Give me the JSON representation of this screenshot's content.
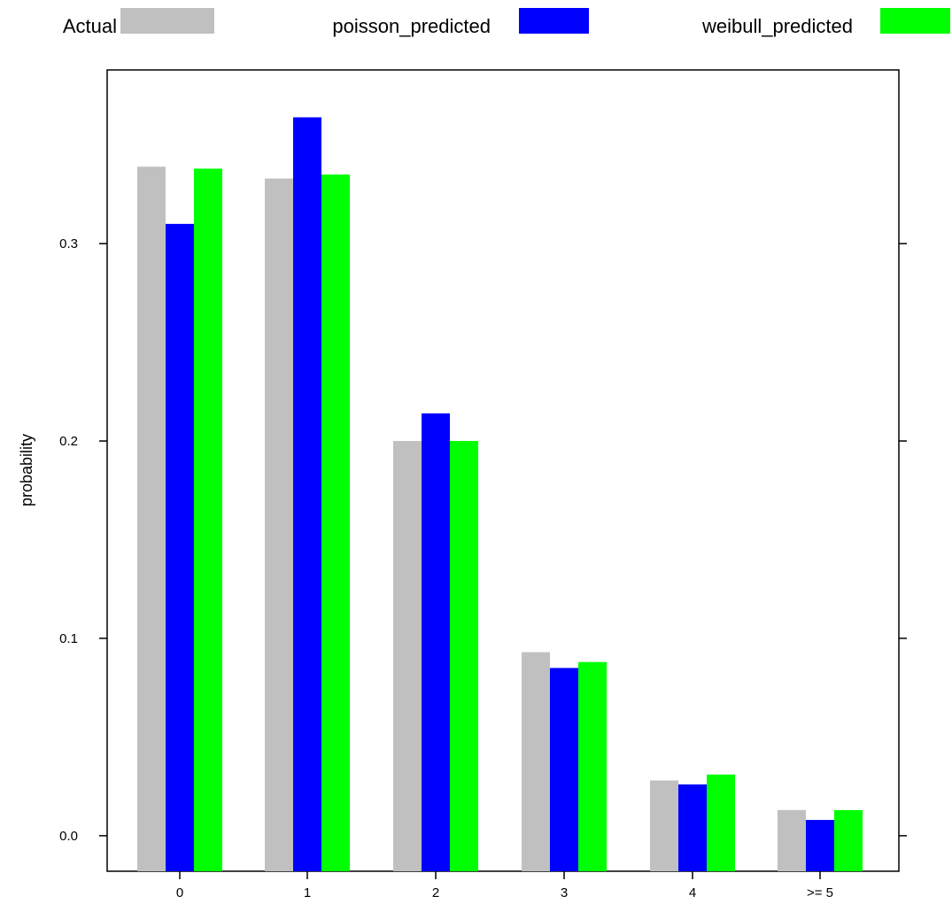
{
  "chart_data": {
    "type": "bar",
    "categories": [
      "0",
      "1",
      "2",
      "3",
      "4",
      ">= 5"
    ],
    "series": [
      {
        "name": "Actual",
        "values": [
          0.339,
          0.333,
          0.2,
          0.093,
          0.028,
          0.013
        ]
      },
      {
        "name": "poisson_predicted",
        "values": [
          0.31,
          0.364,
          0.214,
          0.085,
          0.026,
          0.008
        ]
      },
      {
        "name": "weibull_predicted",
        "values": [
          0.338,
          0.335,
          0.2,
          0.088,
          0.031,
          0.013
        ]
      }
    ],
    "colors": [
      "#c0c0c0",
      "#0000ff",
      "#00ff00"
    ],
    "xlabel": "",
    "ylabel": "probability",
    "yticks": [
      "0.0",
      "0.1",
      "0.2",
      "0.3"
    ],
    "ylim": [
      -0.018,
      0.388
    ],
    "legend_position": "top",
    "grid": false
  }
}
